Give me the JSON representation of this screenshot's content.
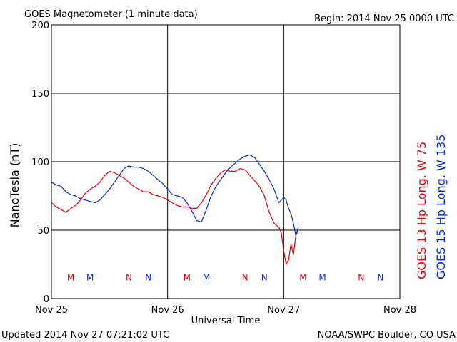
{
  "header": {
    "title": "GOES Magnetometer (1 minute data)",
    "begin": "Begin:  2014 Nov 25 0000 UTC"
  },
  "footer": {
    "updated": "Updated 2014 Nov 27 07:21:02 UTC",
    "credit": "NOAA/SWPC Boulder, CO USA"
  },
  "colors": {
    "goes13": "#e8000a",
    "goes15": "#0a2fd0",
    "axis": "#000000"
  },
  "chart_data": {
    "type": "line",
    "title": "GOES Magnetometer (1 minute data)",
    "xlabel": "Universal Time",
    "ylabel": "NanoTesla (nT)",
    "x_unit": "hours since 2014 Nov 25 0000 UTC",
    "xlim": [
      0,
      72
    ],
    "ylim": [
      0,
      200
    ],
    "x_ticks": [
      {
        "value": 0,
        "label": "Nov 25"
      },
      {
        "value": 24,
        "label": "Nov 26"
      },
      {
        "value": 48,
        "label": "Nov 27"
      },
      {
        "value": 72,
        "label": "Nov 28"
      }
    ],
    "y_ticks": [
      0,
      50,
      100,
      150,
      200
    ],
    "grid": true,
    "legend_position": "right-vertical",
    "series": [
      {
        "name": "GOES 13 Hp  Long. W 75",
        "color": "#e8000a",
        "points": [
          [
            0,
            70
          ],
          [
            1,
            67
          ],
          [
            2,
            65
          ],
          [
            3,
            63
          ],
          [
            4,
            66
          ],
          [
            5,
            68
          ],
          [
            6,
            72
          ],
          [
            7,
            77
          ],
          [
            8,
            80
          ],
          [
            9,
            82
          ],
          [
            10,
            85
          ],
          [
            11,
            90
          ],
          [
            12,
            93
          ],
          [
            13,
            92
          ],
          [
            14,
            90
          ],
          [
            15,
            88
          ],
          [
            16,
            85
          ],
          [
            17,
            82
          ],
          [
            18,
            80
          ],
          [
            19,
            78
          ],
          [
            20,
            78
          ],
          [
            21,
            76
          ],
          [
            22,
            75
          ],
          [
            23,
            74
          ],
          [
            24,
            72
          ],
          [
            25,
            70
          ],
          [
            26,
            68
          ],
          [
            27,
            67
          ],
          [
            28,
            67
          ],
          [
            29,
            66
          ],
          [
            30,
            66
          ],
          [
            31,
            70
          ],
          [
            32,
            76
          ],
          [
            33,
            83
          ],
          [
            34,
            88
          ],
          [
            35,
            92
          ],
          [
            36,
            94
          ],
          [
            37,
            93
          ],
          [
            38,
            93
          ],
          [
            39,
            95
          ],
          [
            40,
            94
          ],
          [
            41,
            90
          ],
          [
            42,
            86
          ],
          [
            43,
            82
          ],
          [
            44,
            75
          ],
          [
            45,
            63
          ],
          [
            46,
            55
          ],
          [
            47,
            52
          ],
          [
            47.5,
            48
          ],
          [
            48,
            35
          ],
          [
            48.5,
            25
          ],
          [
            49,
            28
          ],
          [
            49.5,
            40
          ],
          [
            50,
            32
          ],
          [
            50.5,
            46
          ],
          [
            51,
            50
          ]
        ]
      },
      {
        "name": "GOES 15 Hp  Long. W 135",
        "color": "#0a2fd0",
        "points": [
          [
            0,
            85
          ],
          [
            1,
            83
          ],
          [
            2,
            82
          ],
          [
            3,
            78
          ],
          [
            4,
            76
          ],
          [
            5,
            75
          ],
          [
            6,
            73
          ],
          [
            7,
            72
          ],
          [
            8,
            71
          ],
          [
            9,
            70
          ],
          [
            10,
            72
          ],
          [
            11,
            76
          ],
          [
            12,
            80
          ],
          [
            13,
            85
          ],
          [
            14,
            90
          ],
          [
            15,
            95
          ],
          [
            16,
            97
          ],
          [
            17,
            96
          ],
          [
            18,
            96
          ],
          [
            19,
            95
          ],
          [
            20,
            93
          ],
          [
            21,
            90
          ],
          [
            22,
            87
          ],
          [
            23,
            84
          ],
          [
            24,
            80
          ],
          [
            25,
            76
          ],
          [
            26,
            75
          ],
          [
            27,
            74
          ],
          [
            28,
            70
          ],
          [
            29,
            64
          ],
          [
            30,
            57
          ],
          [
            31,
            56
          ],
          [
            32,
            65
          ],
          [
            33,
            75
          ],
          [
            34,
            82
          ],
          [
            35,
            87
          ],
          [
            36,
            92
          ],
          [
            37,
            96
          ],
          [
            38,
            99
          ],
          [
            39,
            102
          ],
          [
            40,
            104
          ],
          [
            41,
            105
          ],
          [
            42,
            103
          ],
          [
            43,
            98
          ],
          [
            44,
            93
          ],
          [
            45,
            87
          ],
          [
            46,
            80
          ],
          [
            47,
            70
          ],
          [
            48,
            74
          ],
          [
            48.5,
            72
          ],
          [
            49,
            66
          ],
          [
            49.5,
            62
          ],
          [
            50,
            55
          ],
          [
            50.5,
            46
          ],
          [
            51,
            52
          ]
        ]
      }
    ],
    "annotations": [
      {
        "text": "M",
        "x": 4,
        "y": 16,
        "series": "GOES 13 Hp  Long. W 75"
      },
      {
        "text": "M",
        "x": 8,
        "y": 16,
        "series": "GOES 15 Hp  Long. W 135"
      },
      {
        "text": "N",
        "x": 16,
        "y": 16,
        "series": "GOES 13 Hp  Long. W 75"
      },
      {
        "text": "N",
        "x": 20,
        "y": 16,
        "series": "GOES 15 Hp  Long. W 135"
      },
      {
        "text": "M",
        "x": 28,
        "y": 16,
        "series": "GOES 13 Hp  Long. W 75"
      },
      {
        "text": "M",
        "x": 32,
        "y": 16,
        "series": "GOES 15 Hp  Long. W 135"
      },
      {
        "text": "N",
        "x": 40,
        "y": 16,
        "series": "GOES 13 Hp  Long. W 75"
      },
      {
        "text": "N",
        "x": 44,
        "y": 16,
        "series": "GOES 15 Hp  Long. W 135"
      },
      {
        "text": "M",
        "x": 52,
        "y": 16,
        "series": "GOES 13 Hp  Long. W 75"
      },
      {
        "text": "M",
        "x": 56,
        "y": 16,
        "series": "GOES 15 Hp  Long. W 135"
      },
      {
        "text": "N",
        "x": 64,
        "y": 16,
        "series": "GOES 13 Hp  Long. W 75"
      },
      {
        "text": "N",
        "x": 68,
        "y": 16,
        "series": "GOES 15 Hp  Long. W 135"
      }
    ]
  }
}
